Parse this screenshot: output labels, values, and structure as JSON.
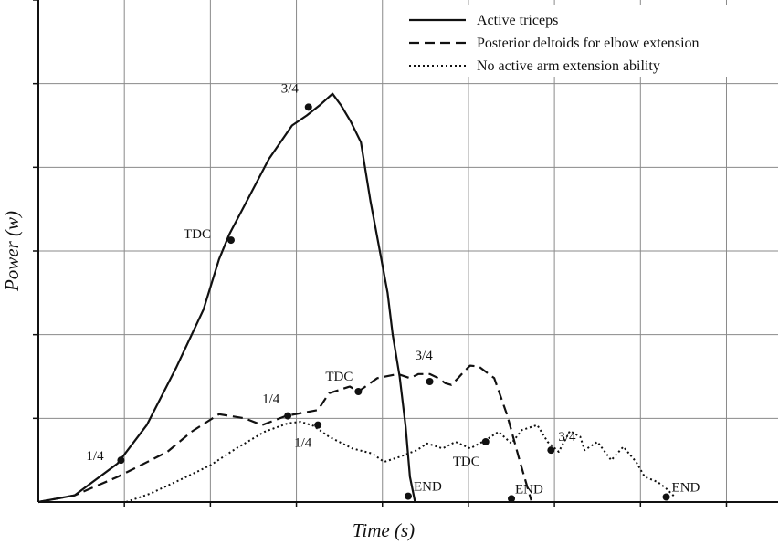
{
  "chart_data": {
    "type": "line",
    "title": "",
    "xlabel": "Time (s)",
    "ylabel": "Power (w)",
    "xlim": [
      0,
      8.6
    ],
    "ylim": [
      0,
      6
    ],
    "grid": true,
    "legend_position": "top-right",
    "series": [
      {
        "name": "Active triceps",
        "style": "solid",
        "points": [
          [
            0,
            0
          ],
          [
            0.42,
            0.08
          ],
          [
            0.92,
            0.46
          ],
          [
            1.26,
            0.92
          ],
          [
            1.6,
            1.6
          ],
          [
            1.92,
            2.3
          ],
          [
            2.1,
            2.9
          ],
          [
            2.22,
            3.2
          ],
          [
            2.4,
            3.55
          ],
          [
            2.68,
            4.1
          ],
          [
            2.95,
            4.5
          ],
          [
            3.12,
            4.62
          ],
          [
            3.28,
            4.75
          ],
          [
            3.42,
            4.88
          ],
          [
            3.52,
            4.74
          ],
          [
            3.63,
            4.55
          ],
          [
            3.75,
            4.3
          ],
          [
            3.86,
            3.6
          ],
          [
            3.97,
            3.0
          ],
          [
            4.06,
            2.5
          ],
          [
            4.12,
            2.0
          ],
          [
            4.2,
            1.5
          ],
          [
            4.27,
            0.9
          ],
          [
            4.32,
            0.3
          ],
          [
            4.38,
            0
          ]
        ]
      },
      {
        "name": "Posterior deltoids for elbow extension",
        "style": "dashed",
        "points": [
          [
            0,
            0
          ],
          [
            0.42,
            0.08
          ],
          [
            0.92,
            0.3
          ],
          [
            1.5,
            0.6
          ],
          [
            1.78,
            0.84
          ],
          [
            2.1,
            1.05
          ],
          [
            2.4,
            1.0
          ],
          [
            2.6,
            0.92
          ],
          [
            2.88,
            1.03
          ],
          [
            3.25,
            1.1
          ],
          [
            3.38,
            1.3
          ],
          [
            3.62,
            1.38
          ],
          [
            3.72,
            1.32
          ],
          [
            3.94,
            1.48
          ],
          [
            4.18,
            1.53
          ],
          [
            4.32,
            1.48
          ],
          [
            4.42,
            1.53
          ],
          [
            4.55,
            1.53
          ],
          [
            4.65,
            1.48
          ],
          [
            4.73,
            1.42
          ],
          [
            4.8,
            1.4
          ],
          [
            4.88,
            1.48
          ],
          [
            4.95,
            1.56
          ],
          [
            5.02,
            1.63
          ],
          [
            5.12,
            1.62
          ],
          [
            5.3,
            1.48
          ],
          [
            5.45,
            1.04
          ],
          [
            5.6,
            0.48
          ],
          [
            5.73,
            0.02
          ]
        ]
      },
      {
        "name": "No active arm extension ability",
        "style": "dotted",
        "points": [
          [
            1.02,
            0
          ],
          [
            1.3,
            0.1
          ],
          [
            1.68,
            0.28
          ],
          [
            2.0,
            0.44
          ],
          [
            2.3,
            0.64
          ],
          [
            2.63,
            0.84
          ],
          [
            2.9,
            0.94
          ],
          [
            3.05,
            0.96
          ],
          [
            3.2,
            0.91
          ],
          [
            3.38,
            0.78
          ],
          [
            3.65,
            0.64
          ],
          [
            3.88,
            0.58
          ],
          [
            4.02,
            0.48
          ],
          [
            4.2,
            0.54
          ],
          [
            4.4,
            0.62
          ],
          [
            4.52,
            0.7
          ],
          [
            4.7,
            0.64
          ],
          [
            4.85,
            0.72
          ],
          [
            5.02,
            0.64
          ],
          [
            5.2,
            0.74
          ],
          [
            5.35,
            0.84
          ],
          [
            5.5,
            0.7
          ],
          [
            5.62,
            0.86
          ],
          [
            5.8,
            0.92
          ],
          [
            5.92,
            0.72
          ],
          [
            6.05,
            0.6
          ],
          [
            6.18,
            0.85
          ],
          [
            6.3,
            0.78
          ],
          [
            6.35,
            0.62
          ],
          [
            6.5,
            0.72
          ],
          [
            6.66,
            0.5
          ],
          [
            6.8,
            0.66
          ],
          [
            6.95,
            0.48
          ],
          [
            7.05,
            0.3
          ],
          [
            7.2,
            0.24
          ],
          [
            7.3,
            0.16
          ],
          [
            7.4,
            0.06
          ]
        ]
      }
    ],
    "annotations": [
      {
        "text": "1/4",
        "x": 0.96,
        "y": 0.5
      },
      {
        "text": "TDC",
        "x": 2.24,
        "y": 3.13
      },
      {
        "text": "3/4",
        "x": 3.14,
        "y": 4.72
      },
      {
        "text": "END",
        "x": 4.3,
        "y": 0.07
      },
      {
        "text": "1/4",
        "x": 2.9,
        "y": 1.03
      },
      {
        "text": "TDC",
        "x": 3.72,
        "y": 1.32
      },
      {
        "text": "3/4",
        "x": 4.55,
        "y": 1.44
      },
      {
        "text": "END",
        "x": 5.5,
        "y": 0.04
      },
      {
        "text": "1/4",
        "x": 3.25,
        "y": 0.92
      },
      {
        "text": "TDC",
        "x": 5.2,
        "y": 0.72
      },
      {
        "text": "3/4",
        "x": 5.96,
        "y": 0.62
      },
      {
        "text": "END",
        "x": 7.3,
        "y": 0.06
      }
    ]
  }
}
